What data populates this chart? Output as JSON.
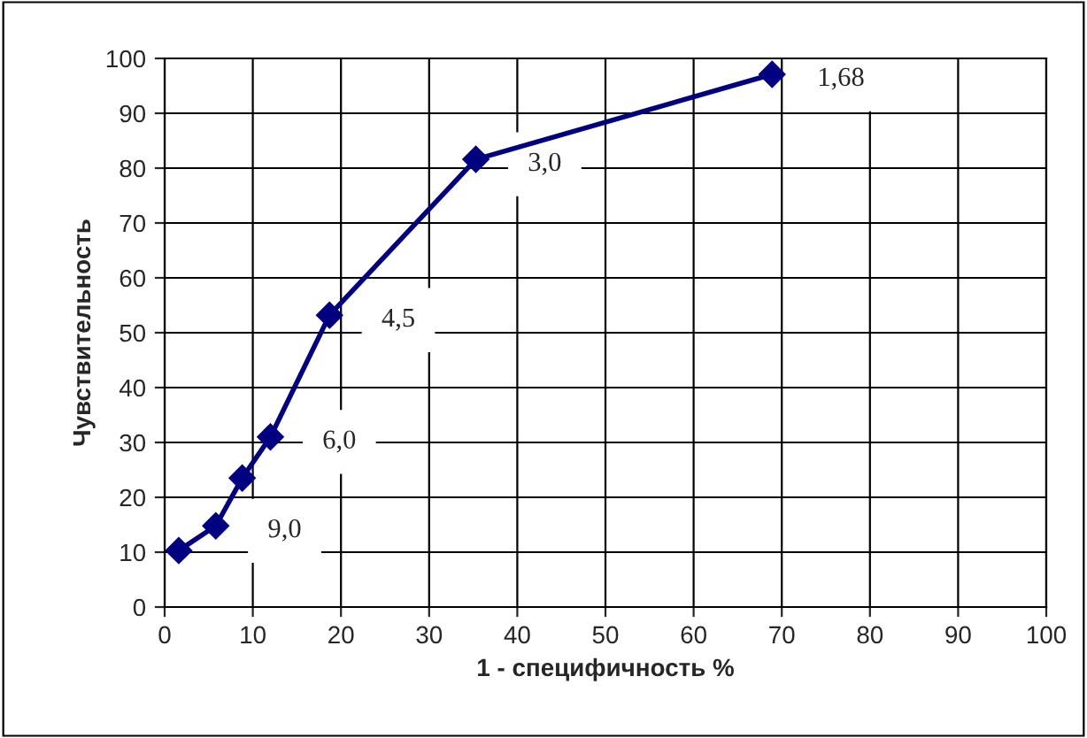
{
  "chart_data": {
    "type": "line",
    "xlabel": "1 - специфичность %",
    "ylabel": "Чувствительность",
    "x": [
      1.6,
      5.8,
      8.8,
      12,
      18.7,
      35.3,
      68.9
    ],
    "series": [
      {
        "color": "#000080",
        "values": [
          10.3,
          14.8,
          23.5,
          31,
          53.2,
          81.6,
          97.1
        ]
      }
    ],
    "xlim": [
      0,
      100
    ],
    "ylim": [
      0,
      100
    ],
    "xticks": [
      0,
      10,
      20,
      30,
      40,
      50,
      60,
      70,
      80,
      90,
      100
    ],
    "yticks": [
      0,
      10,
      20,
      30,
      40,
      50,
      60,
      70,
      80,
      90,
      100
    ],
    "grid": true,
    "marker": "diamond",
    "line_style": "solid",
    "annotations": [
      {
        "text": "9,0",
        "x": 5.8,
        "y": 14.8
      },
      {
        "text": "6,0",
        "x": 12,
        "y": 31
      },
      {
        "text": "4,5",
        "x": 18.7,
        "y": 53.2
      },
      {
        "text": "3,0",
        "x": 35.3,
        "y": 81.6
      },
      {
        "text": "1,68",
        "x": 68.9,
        "y": 97.1
      }
    ]
  }
}
